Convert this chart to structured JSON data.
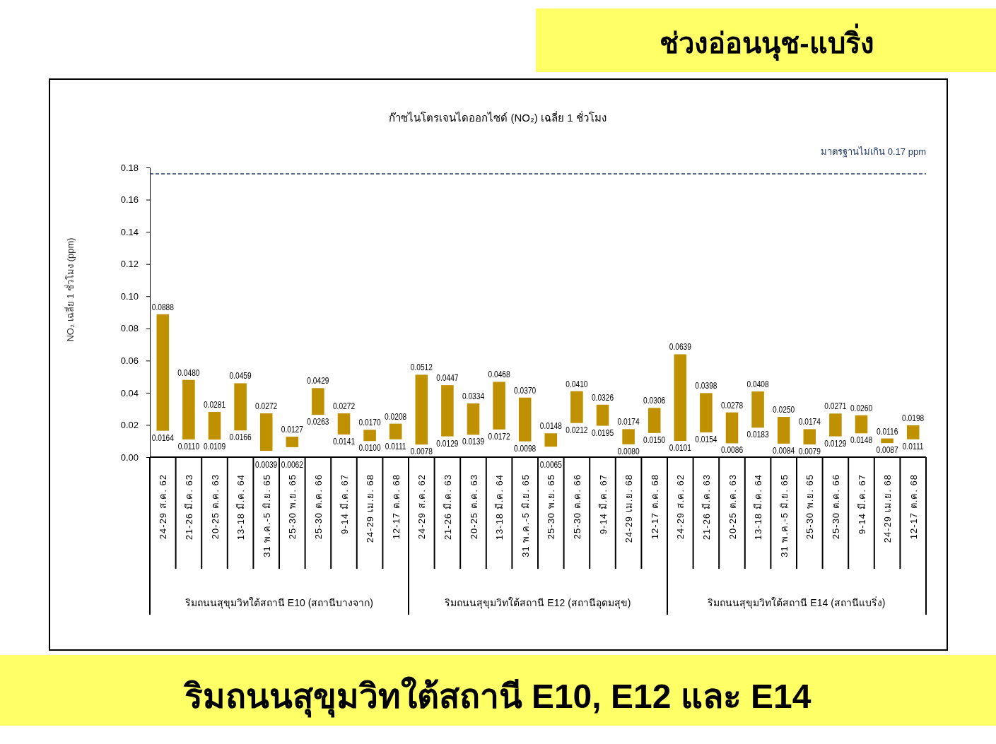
{
  "chart_data": {
    "type": "bar",
    "title": "ก๊าซไนโตรเจนไดออกไซด์ (NO₂) เฉลี่ย 1 ชั่วโมง",
    "ylabel": "NO₂  เฉลี่ย 1 ชั่วโมง (ppm)",
    "categories": [
      "24-29 ส.ค. 62",
      "21-26 มี.ค. 63",
      "20-25 ต.ค. 63",
      "13-18 มี.ค. 64",
      "31 พ.ค.-5 มิ.ย. 65",
      "25-30 พ.ย. 65",
      "25-30 ต.ค. 66",
      "9-14 มี.ค. 67",
      "24-29 เม.ย. 68",
      "12-17 ต.ค. 68",
      "24-29 ส.ค. 62",
      "21-26 มี.ค. 63",
      "20-25 ต.ค. 63",
      "13-18 มี.ค. 64",
      "31 พ.ค.-5 มิ.ย. 65",
      "25-30 พ.ย. 65",
      "25-30 ต.ค. 66",
      "9-14 มี.ค. 67",
      "24-29 เม.ย. 68",
      "12-17 ต.ค. 68",
      "24-29 ส.ค. 62",
      "21-26 มี.ค. 63",
      "20-25 ต.ค. 63",
      "13-18 มี.ค. 64",
      "31 พ.ค.-5 มิ.ย. 65",
      "25-30 พ.ย. 65",
      "25-30 ต.ค. 66",
      "9-14 มี.ค. 67",
      "24-29 เม.ย. 68",
      "12-17 ต.ค. 68"
    ],
    "base": [
      0.0164,
      0.011,
      0.0109,
      0.0166,
      0.0039,
      0.0062,
      0.0263,
      0.0141,
      0.01,
      0.0111,
      0.0078,
      0.0129,
      0.0139,
      0.0172,
      0.0098,
      0.0065,
      0.0212,
      0.0195,
      0.008,
      0.015,
      0.0101,
      0.0154,
      0.0086,
      0.0183,
      0.0084,
      0.0079,
      0.0129,
      0.0148,
      0.0087,
      0.0111
    ],
    "values": [
      0.0724,
      0.037,
      0.0172,
      0.0293,
      0.0233,
      0.0065,
      0.0166,
      0.0131,
      0.007,
      0.0097,
      0.0434,
      0.0318,
      0.0195,
      0.0296,
      0.0272,
      0.0083,
      0.0198,
      0.0131,
      0.0094,
      0.0156,
      0.0538,
      0.0244,
      0.0192,
      0.0225,
      0.0166,
      0.0095,
      0.0142,
      0.0112,
      0.0029,
      0.0087
    ],
    "value_labels": [
      "0.0888",
      "0.0480",
      "0.0281",
      "0.0459",
      "0.0272",
      "0.0127",
      "0.0429",
      "0.0272",
      "0.0170",
      "0.0208",
      "0.0512",
      "0.0447",
      "0.0334",
      "0.0468",
      "0.0370",
      "0.0148",
      "0.0410",
      "0.0326",
      "0.0174",
      "0.0306",
      "0.0639",
      "0.0398",
      "0.0278",
      "0.0408",
      "0.0250",
      "0.0174",
      "0.0271",
      "0.0260",
      "0.0116",
      "0.0198"
    ],
    "color": "#bf9000",
    "ylim": [
      0,
      0.18
    ],
    "yticks": [
      {
        "value": 0,
        "label": "0.00"
      },
      0.02,
      0.04,
      0.06,
      0.08,
      {
        "value": 0.1,
        "label": "0.10"
      },
      0.12,
      0.14,
      0.16,
      0.18
    ],
    "ref_lines": [
      {
        "axis": "y",
        "value": 0.176,
        "label": "มาตรฐานไม่เกิน 0.17 ppm",
        "color": "#1f3864",
        "line_style": "dashed"
      }
    ],
    "annotations": [
      {
        "text": "0.0164",
        "y": 0.0164
      },
      {
        "text": "0.0110",
        "y": 0.011
      },
      {
        "text": "0.0109",
        "y": 0.0109
      },
      {
        "text": "0.0166",
        "y": 0.0166
      },
      {
        "text": "0.0039",
        "y": 0.0039
      },
      {
        "text": "0.0062",
        "y": 0.0062
      },
      {
        "text": "0.0263",
        "y": 0.0263
      },
      {
        "text": "0.0141",
        "y": 0.0141
      },
      {
        "text": "0.0100",
        "y": 0.01
      },
      {
        "text": "0.0111",
        "y": 0.0111
      },
      {
        "text": "0.0078",
        "y": 0.0078
      },
      {
        "text": "0.0129",
        "y": 0.0129
      },
      {
        "text": "0.0139",
        "y": 0.0139
      },
      {
        "text": "0.0172",
        "y": 0.0172
      },
      {
        "text": "0.0098",
        "y": 0.0098
      },
      {
        "text": "0.0065",
        "y": 0.0065
      },
      {
        "text": "0.0212",
        "y": 0.0212
      },
      {
        "text": "0.0195",
        "y": 0.0195
      },
      {
        "text": "0.0080",
        "y": 0.008
      },
      {
        "text": "0.0150",
        "y": 0.015
      },
      {
        "text": "0.0101",
        "y": 0.0101
      },
      {
        "text": "0.0154",
        "y": 0.0154
      },
      {
        "text": "0.0086",
        "y": 0.0086
      },
      {
        "text": "0.0183",
        "y": 0.0183
      },
      {
        "text": "0.0084",
        "y": 0.0084
      },
      {
        "text": "0.0079",
        "y": 0.0079
      },
      {
        "text": "0.0129",
        "y": 0.0129
      },
      {
        "text": "0.0148",
        "y": 0.0148
      },
      {
        "text": "0.0087",
        "y": 0.0087
      },
      {
        "text": "0.0111",
        "y": 0.0111
      },
      "ริมถนนสุขุมวิทใต้สถานี E10 (สถานีบางจาก)",
      "ริมถนนสุขุมวิทใต้สถานี E12 (สถานีอุดมสุข)",
      "ริมถนนสุขุมวิทใต้สถานี E14 (สถานีแบริ่ง)",
      "ช่วงอ่อนนุช-แบริ่ง",
      "ริมถนนสุขุมวิทใต้สถานี E10, E12 และ E14"
    ]
  }
}
